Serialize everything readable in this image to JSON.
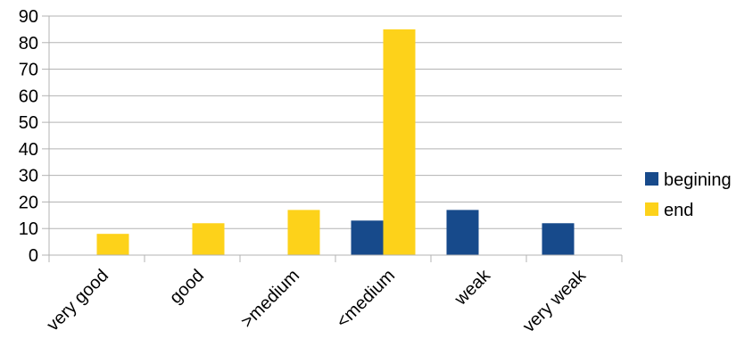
{
  "chart_data": {
    "type": "bar",
    "categories": [
      "very good",
      "good",
      ">medium",
      "<medium",
      "weak",
      "very weak"
    ],
    "series": [
      {
        "name": "begining",
        "color": "#174a8b",
        "values": [
          0,
          0,
          0,
          13,
          17,
          12
        ]
      },
      {
        "name": "end",
        "color": "#fdd21a",
        "values": [
          8,
          12,
          17,
          85,
          0,
          0
        ]
      }
    ],
    "ylim": [
      0,
      90
    ],
    "yticks": [
      0,
      10,
      20,
      30,
      40,
      50,
      60,
      70,
      80,
      90
    ],
    "grid": true,
    "legend_position": "right",
    "title": "",
    "xlabel": "",
    "ylabel": ""
  }
}
